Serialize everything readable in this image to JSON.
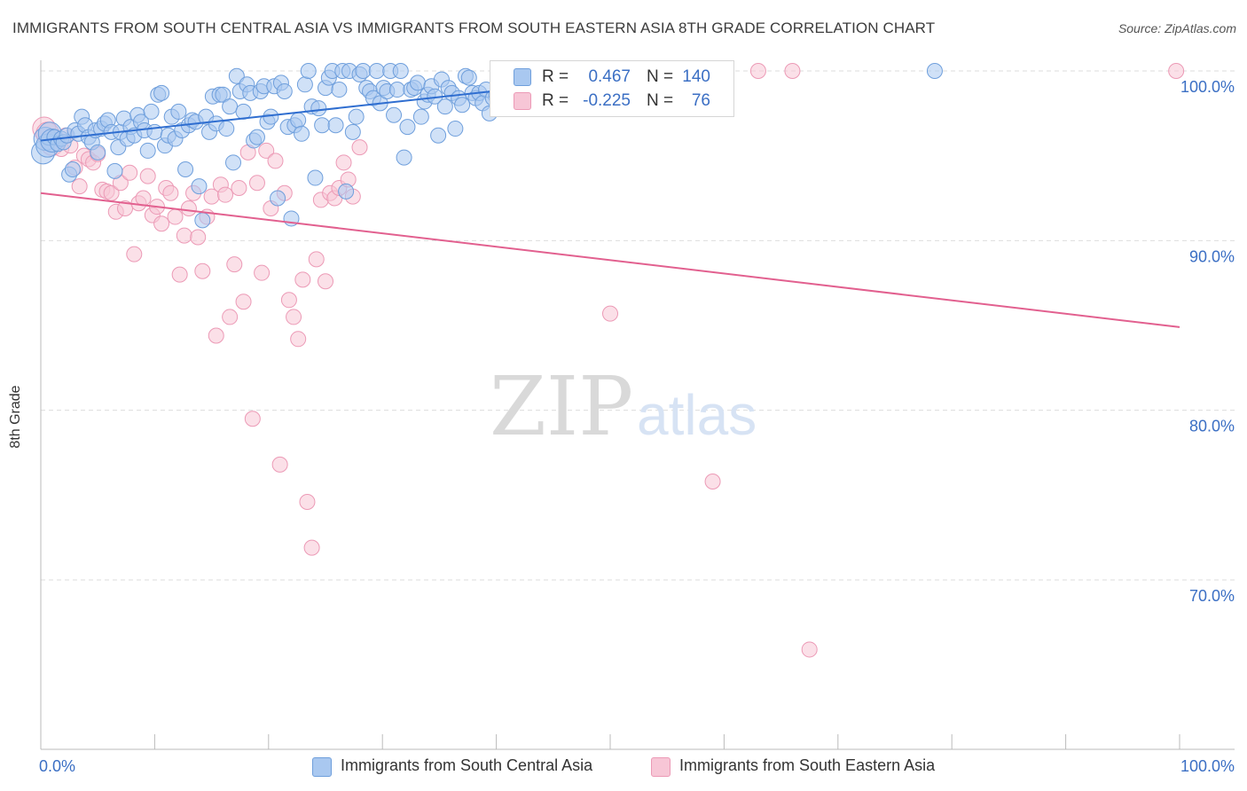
{
  "title": "IMMIGRANTS FROM SOUTH CENTRAL ASIA VS IMMIGRANTS FROM SOUTH EASTERN ASIA 8TH GRADE CORRELATION CHART",
  "source": "Source: ZipAtlas.com",
  "watermark": {
    "zip": "ZIP",
    "atlas": "atlas"
  },
  "legend": {
    "blue": {
      "r_label": "R =",
      "r_value": "0.467",
      "n_label": "N =",
      "n_value": "140"
    },
    "pink": {
      "r_label": "R =",
      "r_value": "-0.225",
      "n_label": "N =",
      "n_value": "76"
    }
  },
  "colors": {
    "blue_fill": "#a9c8f0",
    "blue_stroke": "#6f9fdc",
    "blue_line": "#2f6ed0",
    "pink_fill": "#f7c6d6",
    "pink_stroke": "#ec9ab6",
    "pink_line": "#e2608f",
    "axis_text": "#3b6fc4",
    "grid": "#dddddd"
  },
  "chart_data": {
    "type": "scatter",
    "title": "IMMIGRANTS FROM SOUTH CENTRAL ASIA VS IMMIGRANTS FROM SOUTH EASTERN ASIA 8TH GRADE CORRELATION CHART",
    "xlabel": "",
    "ylabel": "8th Grade",
    "xlim": [
      0,
      100
    ],
    "ylim": [
      59,
      102
    ],
    "x_tick_labels": [
      "0.0%",
      "100.0%"
    ],
    "y_ticks": [
      {
        "value": 100,
        "label": "100.0%"
      },
      {
        "value": 90,
        "label": "90.0%"
      },
      {
        "value": 80,
        "label": "80.0%"
      },
      {
        "value": 70,
        "label": "70.0%"
      }
    ],
    "series": [
      {
        "name": "Immigrants from South Central Asia",
        "color": "blue",
        "trend": {
          "x": [
            0,
            41
          ],
          "y": [
            95.9,
            98.9
          ]
        },
        "points": [
          [
            0.2,
            95.2
          ],
          [
            0.4,
            96.0
          ],
          [
            0.6,
            95.6
          ],
          [
            0.8,
            96.3
          ],
          [
            1.0,
            95.9
          ],
          [
            1.2,
            96.1
          ],
          [
            1.5,
            95.7
          ],
          [
            1.8,
            96.0
          ],
          [
            2.0,
            95.8
          ],
          [
            2.3,
            96.2
          ],
          [
            2.5,
            93.9
          ],
          [
            2.8,
            94.2
          ],
          [
            3.0,
            96.5
          ],
          [
            3.3,
            96.3
          ],
          [
            3.6,
            97.3
          ],
          [
            3.9,
            96.8
          ],
          [
            4.2,
            96.1
          ],
          [
            4.5,
            95.8
          ],
          [
            4.8,
            96.5
          ],
          [
            5.0,
            95.2
          ],
          [
            5.3,
            96.6
          ],
          [
            5.6,
            96.9
          ],
          [
            5.9,
            97.1
          ],
          [
            6.2,
            96.4
          ],
          [
            6.5,
            94.1
          ],
          [
            6.8,
            95.5
          ],
          [
            7.0,
            96.4
          ],
          [
            7.3,
            97.2
          ],
          [
            7.6,
            96.0
          ],
          [
            7.9,
            96.7
          ],
          [
            8.2,
            96.2
          ],
          [
            8.5,
            97.4
          ],
          [
            8.8,
            97.0
          ],
          [
            9.1,
            96.5
          ],
          [
            9.4,
            95.3
          ],
          [
            9.7,
            97.6
          ],
          [
            10.0,
            96.4
          ],
          [
            10.3,
            98.6
          ],
          [
            10.6,
            98.7
          ],
          [
            10.9,
            95.6
          ],
          [
            11.2,
            96.2
          ],
          [
            11.5,
            97.3
          ],
          [
            11.8,
            96.0
          ],
          [
            12.1,
            97.6
          ],
          [
            12.4,
            96.5
          ],
          [
            12.7,
            94.2
          ],
          [
            13.0,
            96.8
          ],
          [
            13.3,
            97.1
          ],
          [
            13.6,
            97.0
          ],
          [
            13.9,
            93.2
          ],
          [
            14.2,
            91.2
          ],
          [
            14.5,
            97.3
          ],
          [
            14.8,
            96.4
          ],
          [
            15.1,
            98.5
          ],
          [
            15.4,
            96.9
          ],
          [
            15.7,
            98.6
          ],
          [
            16.0,
            98.6
          ],
          [
            16.3,
            96.6
          ],
          [
            16.6,
            97.9
          ],
          [
            16.9,
            94.6
          ],
          [
            17.2,
            99.7
          ],
          [
            17.5,
            98.8
          ],
          [
            17.8,
            97.6
          ],
          [
            18.1,
            99.2
          ],
          [
            18.4,
            98.7
          ],
          [
            18.7,
            95.9
          ],
          [
            19.0,
            96.1
          ],
          [
            19.3,
            98.8
          ],
          [
            19.6,
            99.1
          ],
          [
            19.9,
            97.0
          ],
          [
            20.2,
            97.3
          ],
          [
            20.5,
            99.1
          ],
          [
            20.8,
            92.5
          ],
          [
            21.1,
            99.3
          ],
          [
            21.4,
            98.8
          ],
          [
            21.7,
            96.7
          ],
          [
            22.0,
            91.3
          ],
          [
            22.3,
            96.8
          ],
          [
            22.6,
            97.1
          ],
          [
            22.9,
            96.3
          ],
          [
            23.2,
            99.2
          ],
          [
            23.5,
            100.0
          ],
          [
            23.8,
            97.9
          ],
          [
            24.1,
            93.7
          ],
          [
            24.4,
            97.8
          ],
          [
            24.7,
            96.8
          ],
          [
            25.0,
            99.0
          ],
          [
            25.3,
            99.6
          ],
          [
            25.6,
            100.0
          ],
          [
            25.9,
            96.8
          ],
          [
            26.2,
            98.9
          ],
          [
            26.5,
            100.0
          ],
          [
            26.8,
            92.9
          ],
          [
            27.1,
            100.0
          ],
          [
            27.4,
            96.4
          ],
          [
            27.7,
            97.3
          ],
          [
            28.0,
            99.8
          ],
          [
            28.3,
            100.0
          ],
          [
            28.6,
            99.0
          ],
          [
            28.9,
            98.8
          ],
          [
            29.2,
            98.4
          ],
          [
            29.5,
            100.0
          ],
          [
            29.8,
            98.1
          ],
          [
            30.1,
            99.0
          ],
          [
            30.4,
            98.8
          ],
          [
            30.7,
            100.0
          ],
          [
            31.0,
            97.4
          ],
          [
            31.3,
            98.9
          ],
          [
            31.6,
            100.0
          ],
          [
            31.9,
            94.9
          ],
          [
            32.2,
            96.7
          ],
          [
            32.5,
            98.9
          ],
          [
            32.8,
            99.0
          ],
          [
            33.1,
            99.3
          ],
          [
            33.4,
            97.3
          ],
          [
            33.7,
            98.2
          ],
          [
            34.0,
            98.6
          ],
          [
            34.3,
            99.1
          ],
          [
            34.6,
            98.5
          ],
          [
            34.9,
            96.2
          ],
          [
            35.2,
            99.5
          ],
          [
            35.5,
            97.9
          ],
          [
            35.8,
            99.0
          ],
          [
            36.1,
            98.7
          ],
          [
            36.4,
            96.6
          ],
          [
            36.7,
            98.4
          ],
          [
            37.0,
            98.0
          ],
          [
            37.3,
            99.7
          ],
          [
            37.6,
            99.6
          ],
          [
            37.9,
            98.7
          ],
          [
            38.2,
            98.4
          ],
          [
            38.5,
            98.7
          ],
          [
            38.8,
            98.1
          ],
          [
            39.1,
            98.9
          ],
          [
            39.4,
            97.5
          ],
          [
            39.7,
            98.4
          ],
          [
            40.0,
            98.6
          ],
          [
            40.3,
            99.3
          ],
          [
            40.6,
            98.2
          ],
          [
            78.5,
            100.0
          ]
        ]
      },
      {
        "name": "Immigrants from South Eastern Asia",
        "color": "pink",
        "trend": {
          "x": [
            0,
            100
          ],
          "y": [
            92.8,
            84.9
          ]
        },
        "points": [
          [
            0.3,
            96.6
          ],
          [
            0.6,
            96.3
          ],
          [
            1.0,
            95.7
          ],
          [
            1.4,
            96.0
          ],
          [
            1.8,
            95.4
          ],
          [
            2.2,
            96.2
          ],
          [
            2.6,
            95.6
          ],
          [
            3.0,
            94.3
          ],
          [
            3.4,
            93.2
          ],
          [
            3.8,
            95.0
          ],
          [
            4.2,
            94.8
          ],
          [
            4.6,
            94.6
          ],
          [
            5.0,
            95.1
          ],
          [
            5.4,
            93.0
          ],
          [
            5.8,
            92.9
          ],
          [
            6.2,
            92.8
          ],
          [
            6.6,
            91.7
          ],
          [
            7.0,
            93.4
          ],
          [
            7.4,
            91.9
          ],
          [
            7.8,
            94.0
          ],
          [
            8.2,
            89.2
          ],
          [
            8.6,
            92.2
          ],
          [
            9.0,
            92.5
          ],
          [
            9.4,
            93.8
          ],
          [
            9.8,
            91.5
          ],
          [
            10.2,
            92.0
          ],
          [
            10.6,
            91.0
          ],
          [
            11.0,
            93.1
          ],
          [
            11.4,
            92.8
          ],
          [
            11.8,
            91.4
          ],
          [
            12.2,
            88.0
          ],
          [
            12.6,
            90.3
          ],
          [
            13.0,
            91.9
          ],
          [
            13.4,
            92.8
          ],
          [
            13.8,
            90.2
          ],
          [
            14.2,
            88.2
          ],
          [
            14.6,
            91.4
          ],
          [
            15.0,
            92.6
          ],
          [
            15.4,
            84.4
          ],
          [
            15.8,
            93.3
          ],
          [
            16.2,
            92.7
          ],
          [
            16.6,
            85.5
          ],
          [
            17.0,
            88.6
          ],
          [
            17.4,
            93.1
          ],
          [
            17.8,
            86.4
          ],
          [
            18.2,
            95.2
          ],
          [
            18.6,
            79.5
          ],
          [
            19.0,
            93.4
          ],
          [
            19.4,
            88.1
          ],
          [
            19.8,
            95.3
          ],
          [
            20.2,
            91.9
          ],
          [
            20.6,
            94.7
          ],
          [
            21.0,
            76.8
          ],
          [
            21.4,
            92.8
          ],
          [
            21.8,
            86.5
          ],
          [
            22.2,
            85.5
          ],
          [
            22.6,
            84.2
          ],
          [
            23.0,
            87.7
          ],
          [
            23.4,
            74.6
          ],
          [
            23.8,
            71.9
          ],
          [
            24.2,
            88.9
          ],
          [
            24.6,
            92.4
          ],
          [
            25.0,
            87.6
          ],
          [
            25.4,
            92.8
          ],
          [
            25.8,
            92.5
          ],
          [
            26.2,
            93.1
          ],
          [
            26.6,
            94.6
          ],
          [
            27.0,
            93.6
          ],
          [
            27.4,
            92.6
          ],
          [
            28.0,
            95.5
          ],
          [
            50.0,
            85.7
          ],
          [
            59.0,
            75.8
          ],
          [
            63.0,
            100.0
          ],
          [
            66.0,
            100.0
          ],
          [
            67.5,
            65.9
          ],
          [
            99.7,
            100.0
          ]
        ]
      }
    ]
  },
  "bottom_legend": {
    "blue_label": "Immigrants from South Central Asia",
    "pink_label": "Immigrants from South Eastern Asia"
  }
}
